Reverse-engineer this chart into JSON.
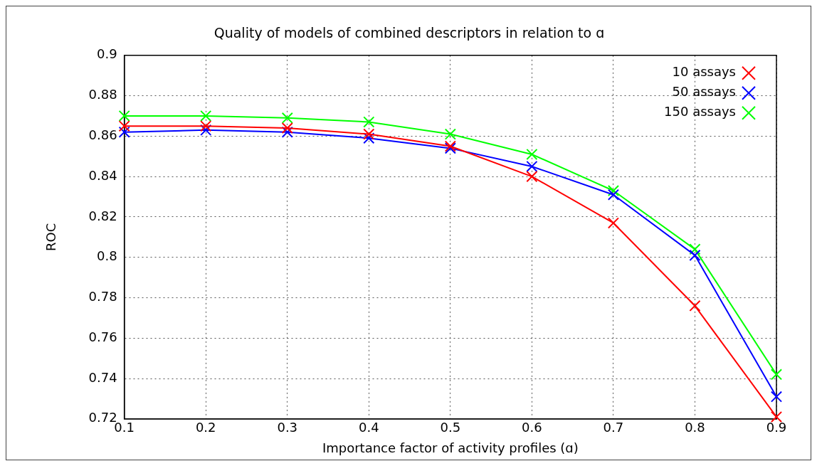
{
  "chart_data": {
    "type": "line",
    "title": "Quality of models of combined descriptors in relation to ɑ",
    "xlabel": "Importance factor of activity profiles (ɑ)",
    "ylabel": "ROC",
    "x": [
      0.1,
      0.2,
      0.3,
      0.4,
      0.5,
      0.6,
      0.7,
      0.8,
      0.9
    ],
    "xlim": [
      0.1,
      0.9
    ],
    "xticks": [
      0.1,
      0.2,
      0.3,
      0.4,
      0.5,
      0.6,
      0.7,
      0.8,
      0.9
    ],
    "ylim": [
      0.72,
      0.9
    ],
    "yticks": [
      0.72,
      0.74,
      0.76,
      0.78,
      0.8,
      0.82,
      0.84,
      0.86,
      0.88,
      0.9
    ],
    "grid": true,
    "legend": "top right",
    "marker": "cross",
    "line_style": "solid",
    "series": [
      {
        "name": "10 assays",
        "color": "#ff0000",
        "values": [
          0.865,
          0.865,
          0.864,
          0.861,
          0.855,
          0.84,
          0.817,
          0.776,
          0.721
        ]
      },
      {
        "name": "50 assays",
        "color": "#0000ff",
        "values": [
          0.862,
          0.863,
          0.862,
          0.859,
          0.854,
          0.845,
          0.831,
          0.801,
          0.731
        ]
      },
      {
        "name": "150 assays",
        "color": "#00ff00",
        "values": [
          0.87,
          0.87,
          0.869,
          0.867,
          0.861,
          0.851,
          0.833,
          0.804,
          0.742
        ]
      }
    ]
  }
}
